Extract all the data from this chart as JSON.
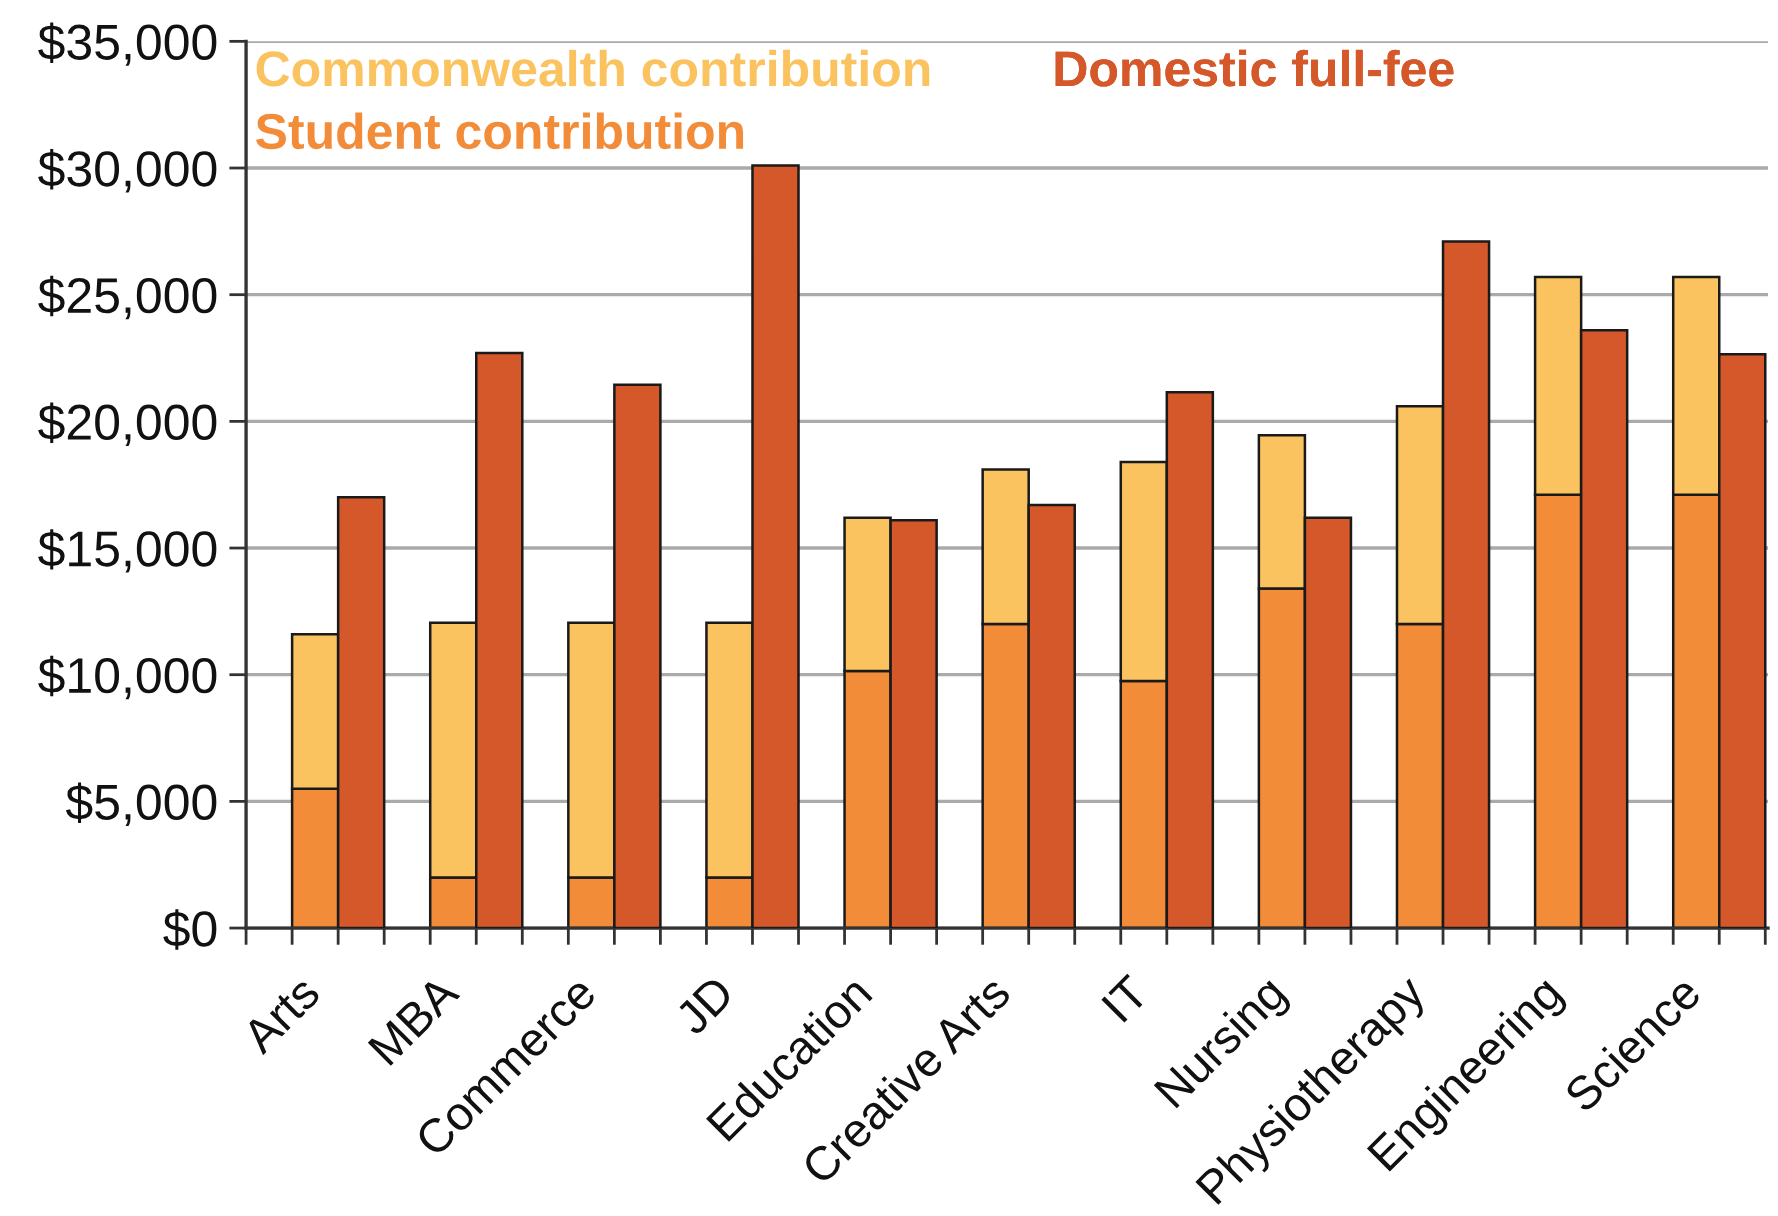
{
  "chart_data": [
    {
      "type": "bar",
      "categories": [
        "Arts",
        "MBA",
        "Commerce",
        "JD",
        "Education",
        "Creative Arts",
        "IT",
        "Nursing",
        "Physiotherapy",
        "Engineering",
        "Science"
      ],
      "stacked": true,
      "series": [
        {
          "name": "Student contribution",
          "color": "#f28c38",
          "values": [
            5500,
            2000,
            2000,
            2000,
            10150,
            12000,
            9750,
            13400,
            12000,
            17100,
            17100
          ]
        },
        {
          "name": "Commonwealth contribution",
          "color": "#fbc35f",
          "values": [
            6100,
            10050,
            10050,
            10050,
            6050,
            6100,
            8650,
            6050,
            8600,
            8600,
            8600
          ]
        }
      ],
      "ylim": [
        0,
        35000
      ],
      "yticks": [
        {
          "value": 0,
          "label": "$0"
        },
        {
          "value": 5000,
          "label": "$5,000"
        },
        {
          "value": 10000,
          "label": "$10,000"
        },
        {
          "value": 15000,
          "label": "$15,000"
        },
        {
          "value": 20000,
          "label": "$20,000"
        },
        {
          "value": 25000,
          "label": "$25,000"
        },
        {
          "value": 30000,
          "label": "$30,000"
        },
        {
          "value": 35000,
          "label": "$35,000"
        }
      ],
      "grid": "y",
      "legend": "top left"
    },
    {
      "type": "bar",
      "categories": [
        null,
        null,
        null,
        null,
        null,
        null,
        null,
        null,
        null,
        null,
        null
      ],
      "series": [
        {
          "name": "Domestic full-fee",
          "color": "#d4582a",
          "values": [
            17000,
            22700,
            21450,
            30100,
            16100,
            16700,
            21150,
            16200,
            27100,
            23600,
            22650
          ]
        }
      ],
      "ylim": [
        0,
        35000
      ],
      "tick_labels": false,
      "legend": "top right"
    }
  ]
}
